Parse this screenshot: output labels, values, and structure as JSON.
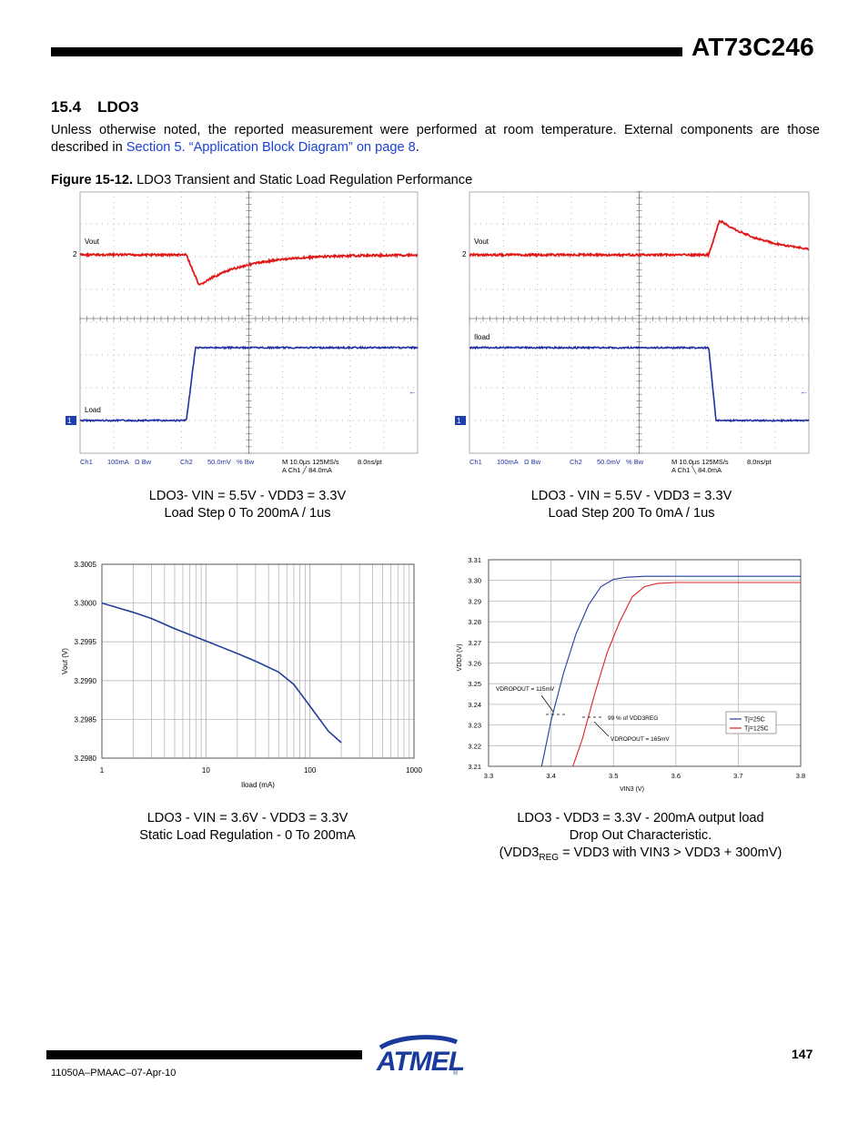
{
  "header": {
    "title": "AT73C246"
  },
  "section": {
    "number": "15.4",
    "title": "LDO3"
  },
  "intro": {
    "text_before": "Unless otherwise noted, the reported measurement were performed at room temperature. External components are those described in ",
    "link": "Section 5. “Application Block Diagram” on page 8",
    "text_after": "."
  },
  "figure": {
    "label": "Figure 15-12.",
    "title": "LDO3 Transient and Static Load Regulation Performance"
  },
  "scope_left": {
    "trace1_label": "Vout",
    "trace2_label": "Load",
    "marker_2": "2",
    "marker_1": "1",
    "footer_ch1": "Ch1",
    "footer_ch1_scale": "100mA",
    "footer_ch1_coupling": "Ω  Bw",
    "footer_ch2": "Ch2",
    "footer_ch2_scale": "50.0mV",
    "footer_ch2_coupling": "% Bw",
    "footer_time": "M 10.0µs 125MS/s",
    "footer_pts": "8.0ns/pt",
    "footer_trigger": "A  Ch1  ╱  84.0mA",
    "caption_line1": "LDO3- VIN = 5.5V - VDD3 = 3.3V",
    "caption_line2": "Load Step 0 To 200mA / 1us"
  },
  "scope_right": {
    "trace1_label": "Vout",
    "trace2_label": "Iload",
    "marker_2": "2",
    "marker_1": "1",
    "footer_ch1": "Ch1",
    "footer_ch1_scale": "100mA",
    "footer_ch1_coupling": "Ω  Bw",
    "footer_ch2": "Ch2",
    "footer_ch2_scale": "50.0mV",
    "footer_ch2_coupling": "% Bw",
    "footer_time": "M 10.0µs 125MS/s",
    "footer_pts": "8.0ns/pt",
    "footer_trigger": "A  Ch1  ╲  84.0mA",
    "caption_line1": "LDO3 - VIN = 5.5V - VDD3 = 3.3V",
    "caption_line2": "Load Step 200 To 0mA / 1us"
  },
  "chart_data": [
    {
      "type": "line",
      "xlabel": "Iload (mA)",
      "ylabel": "Vout (V)",
      "xscale": "log",
      "xlim": [
        1,
        1000
      ],
      "ylim": [
        3.298,
        3.3005
      ],
      "xticks": [
        "1",
        "10",
        "100",
        "1000"
      ],
      "yticks": [
        "3.2980",
        "3.2985",
        "3.2990",
        "3.2995",
        "3.3000",
        "3.3005"
      ],
      "grid": true,
      "series": [
        {
          "color": "#1f3f99",
          "x": [
            1,
            2,
            3,
            5,
            10,
            20,
            30,
            50,
            70,
            100,
            150,
            200
          ],
          "y": [
            3.3,
            3.29988,
            3.2998,
            3.29967,
            3.29951,
            3.29935,
            3.29925,
            3.29911,
            3.29895,
            3.29867,
            3.29835,
            3.2982
          ]
        }
      ]
    },
    {
      "type": "line",
      "xlabel": "VIN3 (V)",
      "ylabel": "VDD3 (V)",
      "xlim": [
        3.3,
        3.8
      ],
      "ylim": [
        3.21,
        3.31
      ],
      "xticks": [
        "3.3",
        "3.4",
        "3.5",
        "3.6",
        "3.7",
        "3.8"
      ],
      "yticks": [
        "3.21",
        "3.22",
        "3.23",
        "3.24",
        "3.25",
        "3.26",
        "3.27",
        "3.28",
        "3.29",
        "3.30",
        "3.31"
      ],
      "grid": true,
      "legend": "right",
      "annotations": [
        "VDROPOUT = 115mV",
        "99 % of VDD3REG",
        "VDROPOUT = 165mV"
      ],
      "series": [
        {
          "name": "Tj=25C",
          "color": "#1f3f99",
          "x": [
            3.385,
            3.4,
            3.42,
            3.44,
            3.46,
            3.48,
            3.5,
            3.52,
            3.55,
            3.8
          ],
          "y": [
            3.21,
            3.232,
            3.255,
            3.274,
            3.288,
            3.297,
            3.3005,
            3.3015,
            3.302,
            3.302
          ]
        },
        {
          "name": "Tj=125C",
          "color": "#e02020",
          "x": [
            3.435,
            3.45,
            3.47,
            3.49,
            3.51,
            3.53,
            3.55,
            3.57,
            3.6,
            3.8
          ],
          "y": [
            3.21,
            3.223,
            3.245,
            3.265,
            3.28,
            3.292,
            3.297,
            3.2985,
            3.299,
            3.299
          ]
        }
      ]
    }
  ],
  "chart_text": {
    "c1_caption_line1": "LDO3 - VIN = 3.6V - VDD3 = 3.3V",
    "c1_caption_line2": "Static Load Regulation - 0 To 200mA",
    "c2_caption_line1": "LDO3 - VDD3 = 3.3V - 200mA output load",
    "c2_caption_line2": "Drop Out Characteristic.",
    "c2_caption_line3_pre": "(VDD3",
    "c2_caption_line3_sub": "REG",
    "c2_caption_line3_post": " = VDD3 with VIN3 > VDD3 + 300mV)"
  },
  "footer": {
    "page_number": "147",
    "doc_code": "11050A–PMAAC–07-Apr-10",
    "logo_text": "ATMEL"
  }
}
